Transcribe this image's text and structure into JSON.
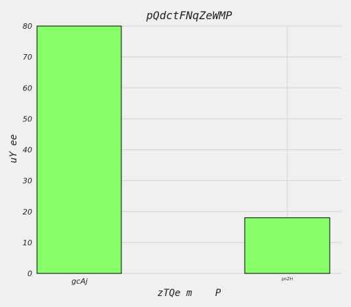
{
  "chart_data": {
    "type": "bar",
    "title": "pQdctFNqZeWMP",
    "xlabel": "zTQe m    P",
    "ylabel": "uY ee",
    "categories": [
      "gcAj",
      "pnZH"
    ],
    "values": [
      80,
      18
    ],
    "ylim": [
      0,
      80
    ],
    "yticks": [
      0,
      10,
      20,
      30,
      40,
      50,
      60,
      70,
      80
    ],
    "grid": true,
    "legend": "none",
    "bar_color": "#88ff6b",
    "background": "#f0f0f0"
  }
}
